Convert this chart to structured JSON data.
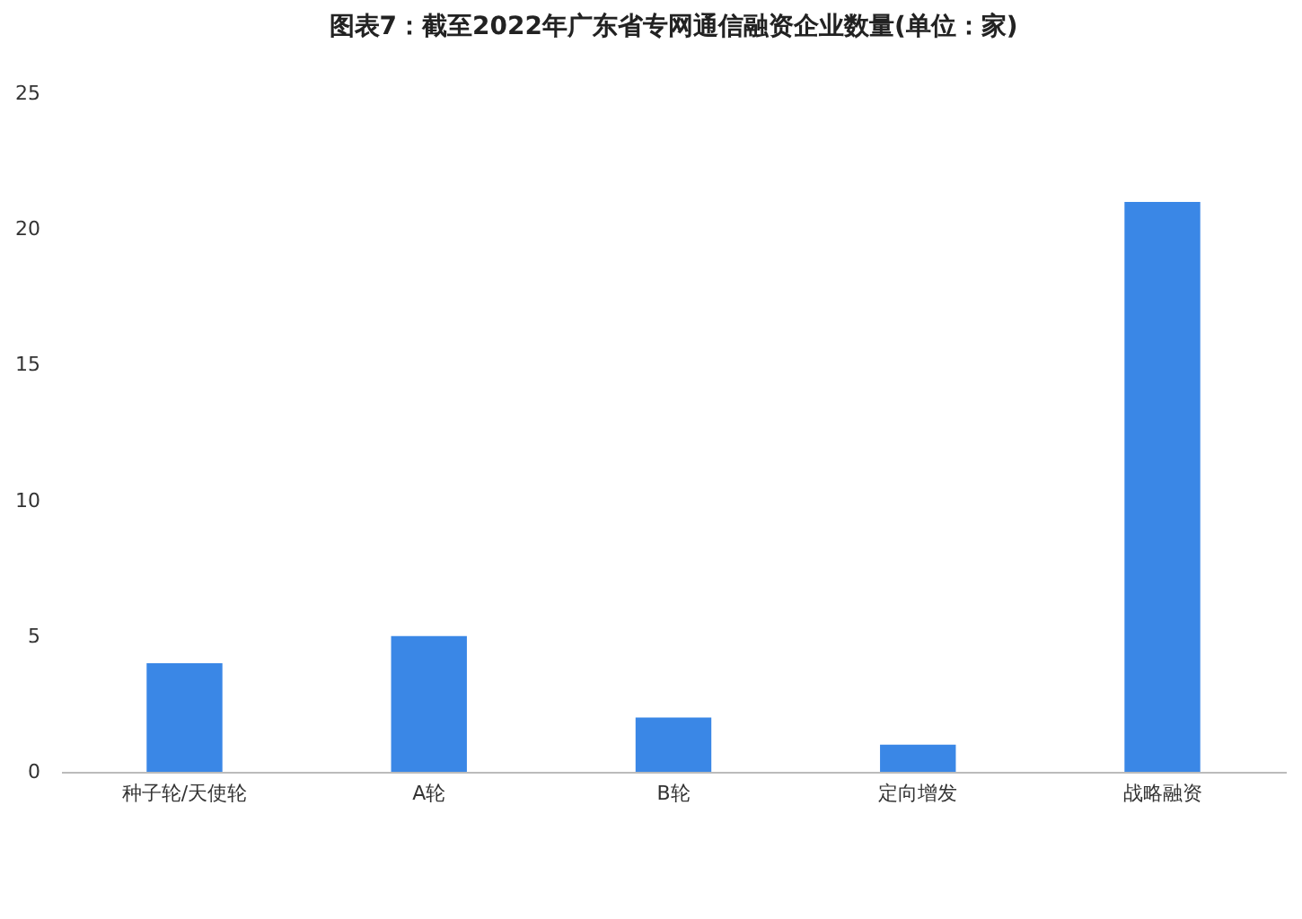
{
  "chart_data": {
    "type": "bar",
    "title": "图表7：截至2022年广东省专网通信融资企业数量(单位：家)",
    "categories": [
      "种子轮/天使轮",
      "A轮",
      "B轮",
      "定向增发",
      "战略融资"
    ],
    "values": [
      4,
      5,
      2,
      1,
      21
    ],
    "color": "#3a87e6",
    "ylim": [
      0,
      25
    ],
    "yticks": [
      0,
      5,
      10,
      15,
      20,
      25
    ],
    "grid": false
  }
}
